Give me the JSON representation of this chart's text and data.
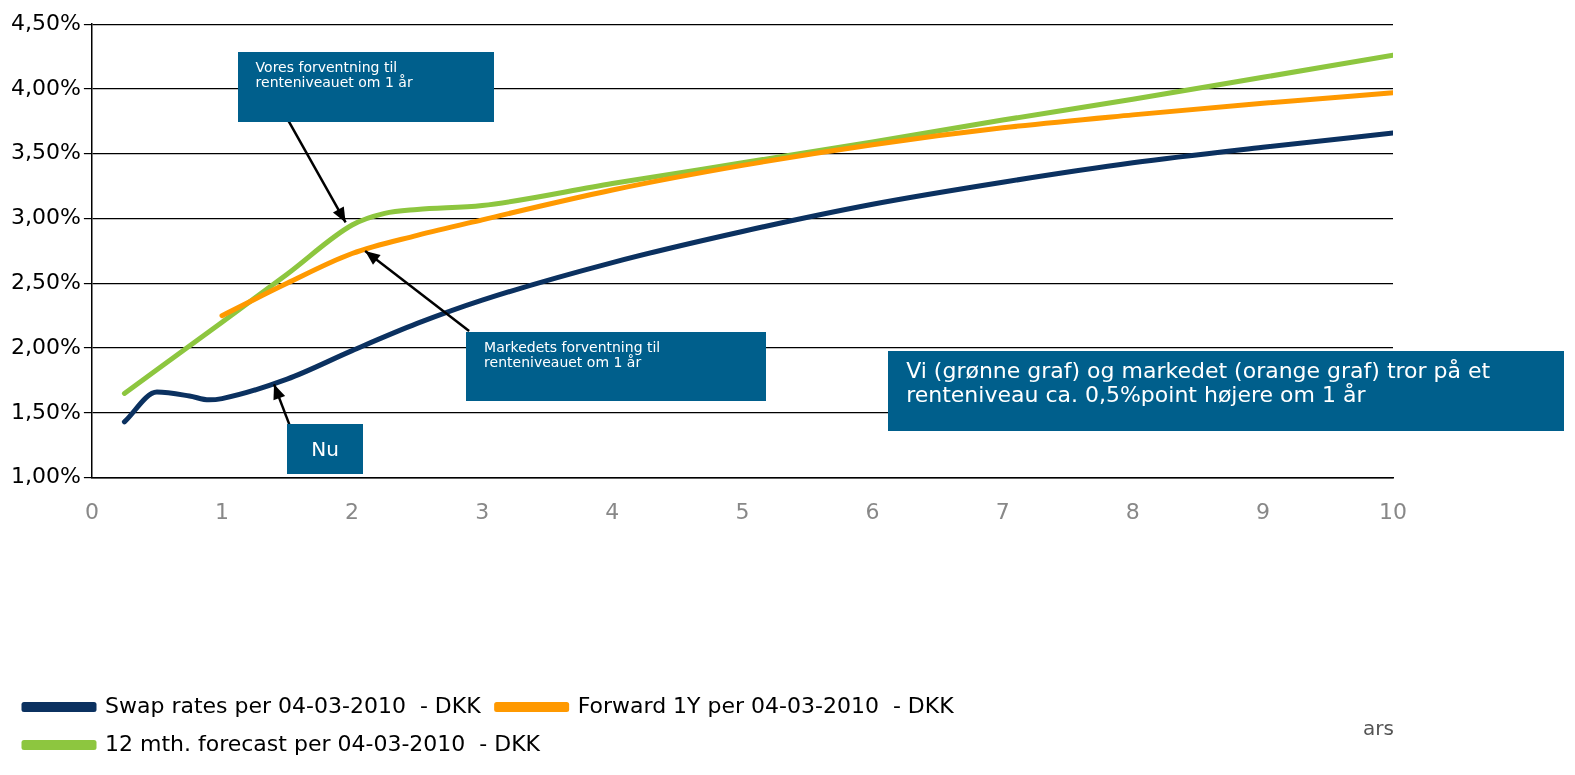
{
  "chart_data": {
    "type": "line",
    "xlim": [
      0,
      10
    ],
    "xticks": [
      0,
      1,
      2,
      3,
      4,
      5,
      6,
      7,
      8,
      9,
      10
    ],
    "ylim": [
      1.0,
      4.5
    ],
    "yticks": [
      {
        "value": 1.0,
        "label": "1,00%"
      },
      {
        "value": 1.5,
        "label": "1,50%"
      },
      {
        "value": 2.0,
        "label": "2,00%"
      },
      {
        "value": 2.5,
        "label": "2,50%"
      },
      {
        "value": 3.0,
        "label": "3,00%"
      },
      {
        "value": 3.5,
        "label": "3,50%"
      },
      {
        "value": 4.0,
        "label": "4,00%"
      },
      {
        "value": 4.5,
        "label": "4,50%"
      }
    ],
    "grid": "y",
    "legend": "bottom",
    "marker": "none",
    "line_style": "solid",
    "series": [
      {
        "name": "Swap rates per 04-03-2010  - DKK",
        "color": "#0b3160",
        "x": [
          0.25,
          0.5,
          0.75,
          0.9,
          1,
          1.5,
          2,
          2.5,
          3,
          4,
          5,
          6,
          7,
          8,
          9,
          10
        ],
        "values": [
          1.43,
          1.66,
          1.63,
          1.6,
          1.61,
          1.76,
          1.98,
          2.19,
          2.37,
          2.66,
          2.9,
          3.11,
          3.28,
          3.43,
          3.55,
          3.66
        ]
      },
      {
        "name": "Forward 1Y per 04-03-2010  - DKK",
        "color": "#ff9900",
        "x": [
          1,
          1.5,
          2,
          2.5,
          3,
          4,
          5,
          6,
          7,
          8,
          9,
          10
        ],
        "values": [
          2.25,
          2.5,
          2.73,
          2.87,
          2.99,
          3.22,
          3.41,
          3.57,
          3.7,
          3.8,
          3.89,
          3.97
        ]
      },
      {
        "name": "12 mth. forecast per 04-03-2010  - DKK",
        "color": "#8dc63f",
        "x": [
          0.25,
          1,
          1.5,
          2,
          2.25,
          2.5,
          3,
          4,
          5,
          6,
          7,
          8,
          9,
          10
        ],
        "values": [
          1.65,
          2.2,
          2.57,
          2.95,
          3.04,
          3.07,
          3.1,
          3.27,
          3.43,
          3.59,
          3.76,
          3.92,
          4.09,
          4.26
        ]
      }
    ],
    "annotations": [
      {
        "text": "Vores forventning til renteniveauet om 1 år",
        "x": 1.95,
        "y": 2.97
      },
      {
        "text": "Markedets forventning til renteniveauet om 1 år",
        "x": 2.1,
        "y": 2.75
      },
      {
        "text": "Nu",
        "x": 1.4,
        "y": 1.72
      },
      "Vi (grønne graf) og markedet (orange graf) tror på et renteniveau ca. 0,5%point højere om 1 år",
      "ars"
    ]
  }
}
